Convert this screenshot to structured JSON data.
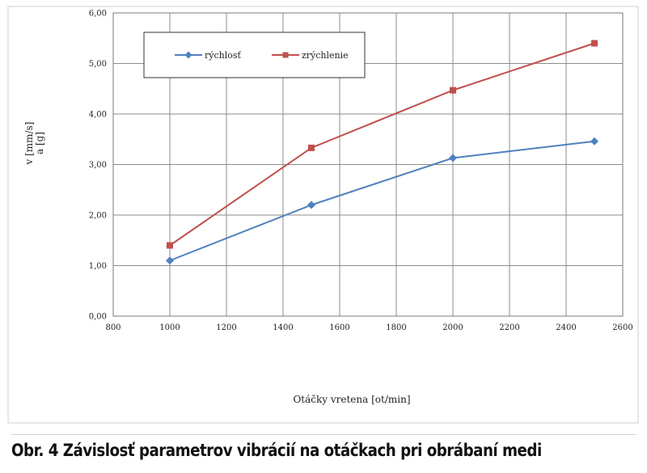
{
  "chart_data": {
    "type": "line",
    "xlabel": "Otáčky vretena [ot/min]",
    "ylabel_lines": [
      "v [mm/s]",
      "a [g]"
    ],
    "xlim": [
      800,
      2600
    ],
    "ylim": [
      0,
      6
    ],
    "x_ticks": [
      "800",
      "1000",
      "1200",
      "1400",
      "1600",
      "1800",
      "2000",
      "2200",
      "2400",
      "2600"
    ],
    "y_ticks": [
      "0,00",
      "1,00",
      "2,00",
      "3,00",
      "4,00",
      "5,00",
      "6,00"
    ],
    "grid": true,
    "legend_position": "top-left",
    "x": [
      1000,
      1500,
      2000,
      2500
    ],
    "series": [
      {
        "name": "rýchlosť",
        "values": [
          1.1,
          2.2,
          3.13,
          3.46
        ],
        "color": "#4f81bd",
        "marker": "diamond"
      },
      {
        "name": "zrýchlenie",
        "values": [
          1.4,
          3.33,
          4.47,
          5.4
        ],
        "color": "#c0504d",
        "marker": "square"
      }
    ]
  },
  "caption": "Obr. 4 Závislosť parametrov vibrácií na otáčkach pri obrábaní medi"
}
